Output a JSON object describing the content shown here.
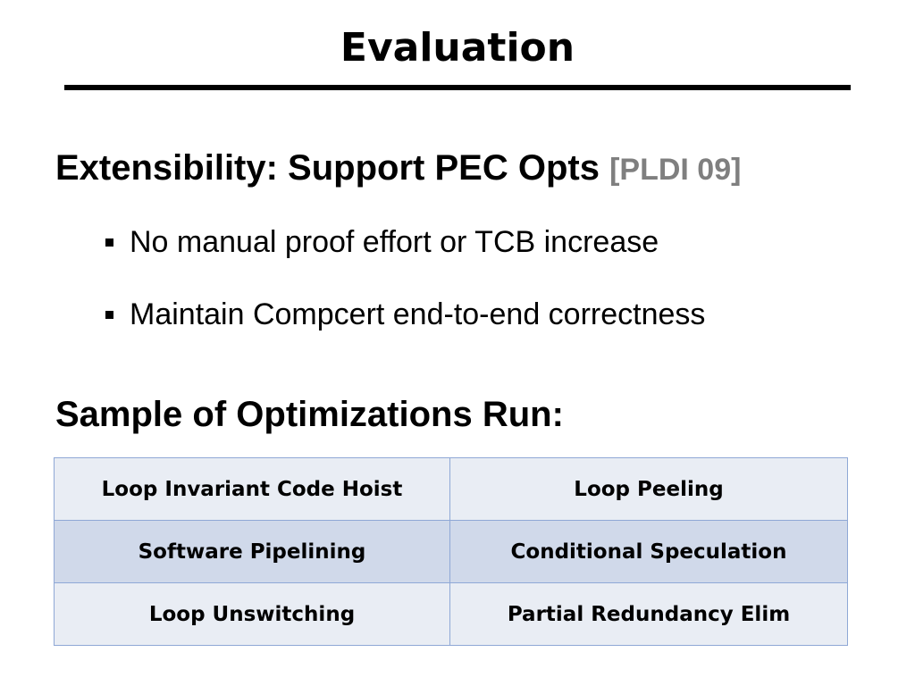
{
  "slide": {
    "title": "Evaluation",
    "heading_1": {
      "text": "Extensibility: Support PEC Opts",
      "citation": "[PLDI 09]"
    },
    "bullets": [
      "No manual proof effort or TCB increase",
      "Maintain Compcert end-to-end correctness"
    ],
    "heading_2": "Sample of Optimizations Run:",
    "table": {
      "rows": [
        [
          "Loop Invariant Code Hoist",
          "Loop Peeling"
        ],
        [
          "Software Pipelining",
          "Conditional Speculation"
        ],
        [
          "Loop Unswitching",
          "Partial Redundancy Elim"
        ]
      ]
    }
  },
  "colors": {
    "citation": "#7f7f7f",
    "table_border": "#8fa8d6",
    "row_light": "#e9edf4",
    "row_dark": "#d0d9ea"
  }
}
